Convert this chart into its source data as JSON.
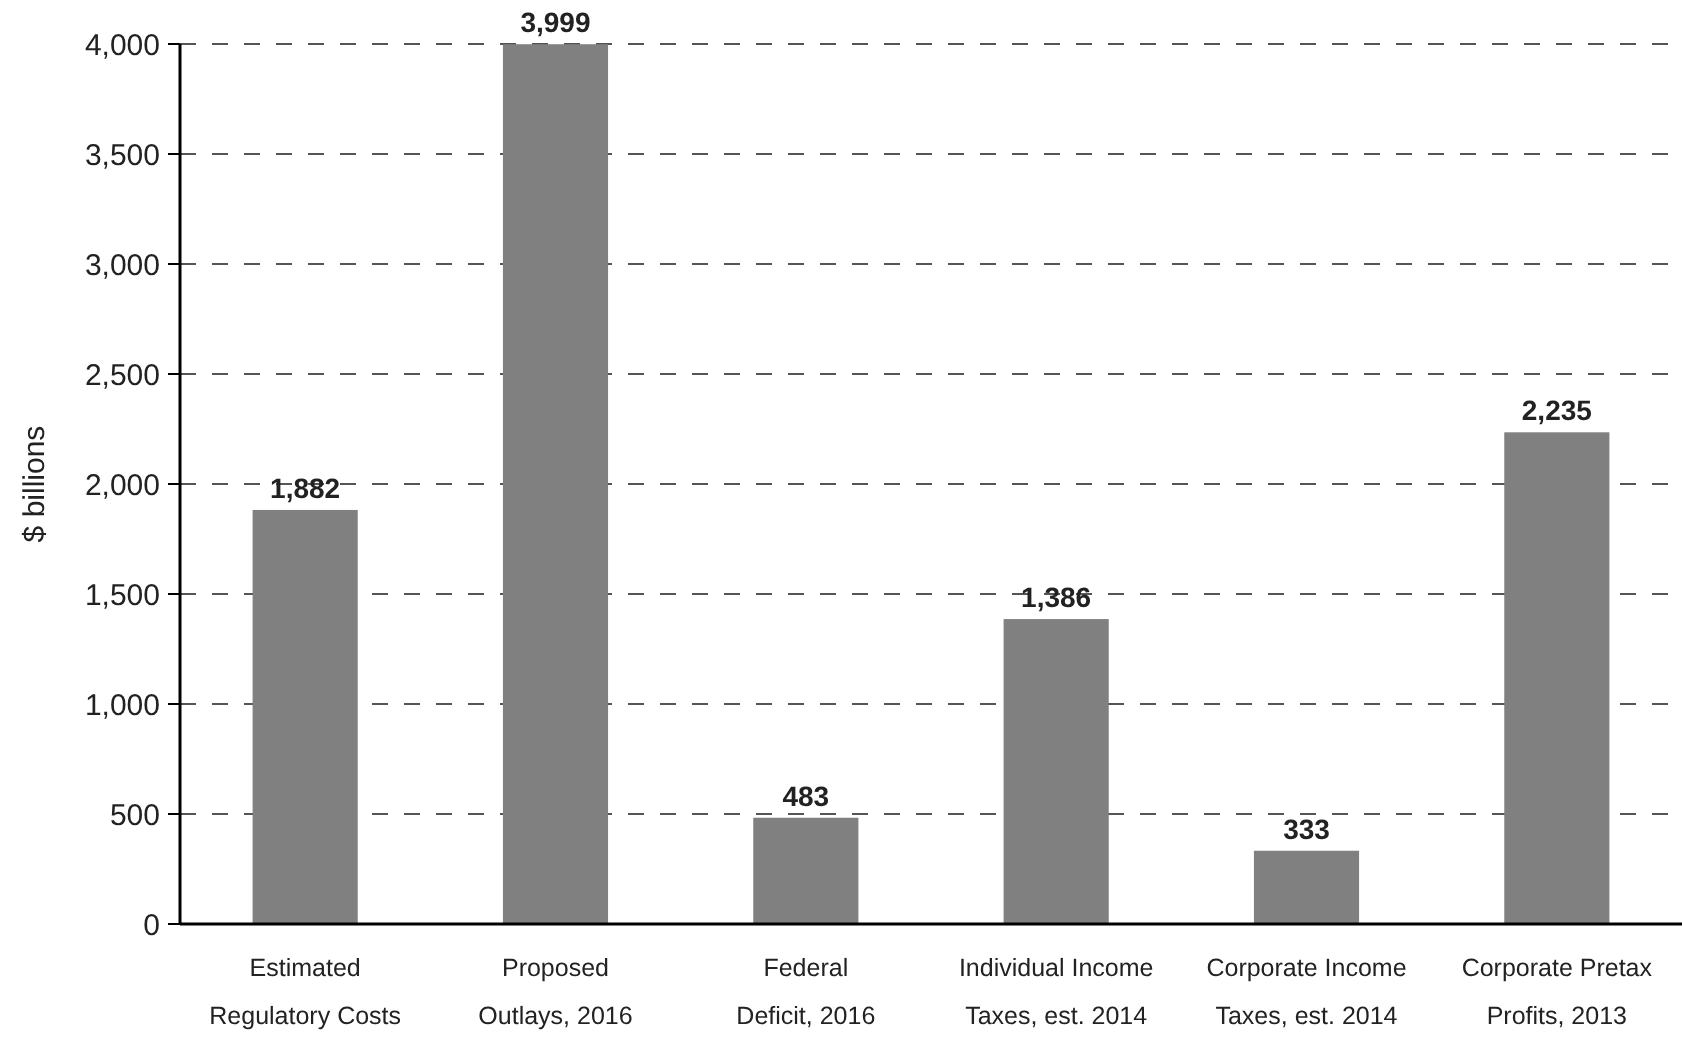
{
  "chart_data": {
    "type": "bar",
    "ylabel": "$ billions",
    "categories": [
      "Estimated Regulatory Costs",
      "Proposed Outlays, 2016",
      "Federal Deficit, 2016",
      "Individual Income Taxes, est. 2014",
      "Corporate Income Taxes, est. 2014",
      "Corporate Pretax Profits, 2013"
    ],
    "values": [
      1882,
      3999,
      483,
      1386,
      333,
      2235
    ],
    "value_labels": [
      "1,882",
      "3,999",
      "483",
      "1,386",
      "333",
      "2,235"
    ],
    "color": "#808080",
    "ylim": [
      0,
      4000
    ],
    "yticks": [
      {
        "value": 0,
        "label": "0"
      },
      {
        "value": 500,
        "label": "500"
      },
      {
        "value": 1000,
        "label": "1,000"
      },
      {
        "value": 1500,
        "label": "1,500"
      },
      {
        "value": 2000,
        "label": "2,000"
      },
      {
        "value": 2500,
        "label": "2,500"
      },
      {
        "value": 3000,
        "label": "3,000"
      },
      {
        "value": 3500,
        "label": "3,500"
      },
      {
        "value": 4000,
        "label": "4,000"
      }
    ],
    "grid": "y"
  }
}
